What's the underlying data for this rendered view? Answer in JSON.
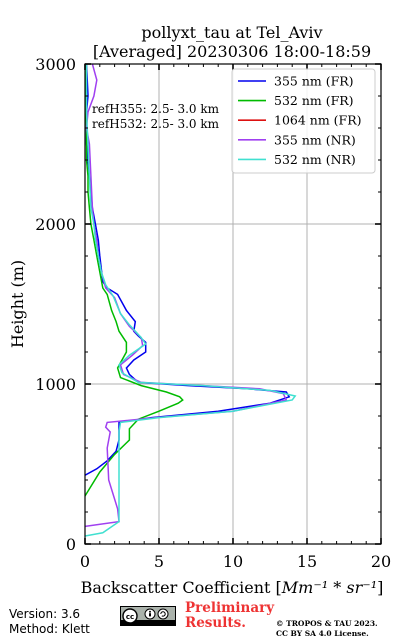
{
  "chart_data": {
    "type": "line",
    "title": "pollyxt_tau at Tel_Aviv",
    "subtitle": "[Averaged] 20230306 18:00-18:59",
    "xlabel_text": "Backscatter Coefficient [",
    "xlabel_units": "Mm⁻¹ * sr⁻¹",
    "xlabel_close": "]",
    "ylabel": "Height (m)",
    "xlim": [
      0,
      20
    ],
    "ylim": [
      0,
      3000
    ],
    "x_ticks": [
      0,
      5,
      10,
      15,
      20
    ],
    "y_ticks": [
      0,
      1000,
      2000,
      3000
    ],
    "grid": true,
    "legend_position": "top-right",
    "annotations": [
      "refH355:  2.5- 3.0 km",
      "refH532:  2.5- 3.0 km"
    ],
    "series": [
      {
        "name": "355 nm (FR)",
        "color": "#0000ee",
        "points": [
          [
            -0.5,
            400
          ],
          [
            0,
            430
          ],
          [
            0.8,
            470
          ],
          [
            1.5,
            520
          ],
          [
            2.1,
            580
          ],
          [
            2.3,
            650
          ],
          [
            2.3,
            760
          ],
          [
            4.5,
            790
          ],
          [
            9,
            830
          ],
          [
            12.5,
            880
          ],
          [
            13.8,
            920
          ],
          [
            13.6,
            950
          ],
          [
            11,
            970
          ],
          [
            7,
            990
          ],
          [
            3.6,
            1010
          ],
          [
            3.0,
            1060
          ],
          [
            2.8,
            1100
          ],
          [
            3.3,
            1150
          ],
          [
            4.1,
            1200
          ],
          [
            4.1,
            1260
          ],
          [
            3.6,
            1300
          ],
          [
            3.3,
            1330
          ],
          [
            3.4,
            1390
          ],
          [
            2.8,
            1460
          ],
          [
            2.2,
            1560
          ],
          [
            1.5,
            1600
          ],
          [
            1.2,
            1640
          ],
          [
            1.0,
            1800
          ],
          [
            0.9,
            1900
          ],
          [
            0.7,
            2000
          ],
          [
            0.5,
            2100
          ],
          [
            0.4,
            2200
          ],
          [
            0.3,
            2300
          ],
          [
            0.2,
            2400
          ],
          [
            0.1,
            2500
          ],
          [
            0.1,
            2700
          ],
          [
            0.2,
            2800
          ],
          [
            0.1,
            3000
          ]
        ]
      },
      {
        "name": "532 nm (FR)",
        "color": "#00bb00",
        "points": [
          [
            -0.5,
            180
          ],
          [
            0,
            300
          ],
          [
            1,
            450
          ],
          [
            2.0,
            560
          ],
          [
            3.0,
            650
          ],
          [
            3.0,
            720
          ],
          [
            3.6,
            780
          ],
          [
            5.0,
            830
          ],
          [
            6.3,
            880
          ],
          [
            6.6,
            900
          ],
          [
            6.4,
            920
          ],
          [
            5.5,
            950
          ],
          [
            3.8,
            990
          ],
          [
            2.4,
            1040
          ],
          [
            2.2,
            1100
          ],
          [
            2.8,
            1200
          ],
          [
            2.8,
            1260
          ],
          [
            2.3,
            1330
          ],
          [
            2.1,
            1390
          ],
          [
            1.8,
            1460
          ],
          [
            1.5,
            1560
          ],
          [
            1.2,
            1600
          ],
          [
            1.0,
            1700
          ],
          [
            0.8,
            1800
          ],
          [
            0.6,
            1900
          ],
          [
            0.4,
            2000
          ],
          [
            0.3,
            2100
          ],
          [
            0.2,
            2200
          ],
          [
            0.2,
            2300
          ],
          [
            0.1,
            2400
          ],
          [
            0.1,
            2500
          ],
          [
            0.1,
            2600
          ],
          [
            0.05,
            2800
          ],
          [
            0,
            3000
          ]
        ]
      },
      {
        "name": "1064 nm (FR)",
        "color": "#dd1111",
        "points": []
      },
      {
        "name": "355 nm (NR)",
        "color": "#a040f0",
        "points": [
          [
            0,
            110
          ],
          [
            2.3,
            140
          ],
          [
            2.2,
            220
          ],
          [
            1.6,
            400
          ],
          [
            1.5,
            600
          ],
          [
            1.7,
            700
          ],
          [
            1.4,
            730
          ],
          [
            1.5,
            760
          ],
          [
            4.8,
            790
          ],
          [
            10,
            830
          ],
          [
            13.6,
            900
          ],
          [
            13.4,
            940
          ],
          [
            11.8,
            970
          ],
          [
            8,
            990
          ],
          [
            3.8,
            1010
          ],
          [
            2.6,
            1060
          ],
          [
            2.4,
            1120
          ],
          [
            3.2,
            1180
          ],
          [
            3.9,
            1240
          ],
          [
            3.8,
            1290
          ],
          [
            3.0,
            1360
          ],
          [
            2.4,
            1440
          ],
          [
            2.0,
            1540
          ],
          [
            1.4,
            1600
          ],
          [
            1.1,
            1700
          ],
          [
            0.9,
            1800
          ],
          [
            0.8,
            1900
          ],
          [
            0.6,
            2000
          ],
          [
            0.5,
            2100
          ],
          [
            0.4,
            2300
          ],
          [
            0.3,
            2500
          ],
          [
            0.1,
            2600
          ],
          [
            0.2,
            2700
          ],
          [
            0.6,
            2800
          ],
          [
            0.8,
            2900
          ],
          [
            0.5,
            3000
          ]
        ]
      },
      {
        "name": "532 nm (NR)",
        "color": "#40e0d0",
        "points": [
          [
            -0.3,
            30
          ],
          [
            0,
            50
          ],
          [
            1.2,
            70
          ],
          [
            2.3,
            140
          ],
          [
            2.3,
            250
          ],
          [
            2.3,
            400
          ],
          [
            2.3,
            700
          ],
          [
            2.4,
            760
          ],
          [
            5,
            790
          ],
          [
            10,
            830
          ],
          [
            14,
            900
          ],
          [
            14.2,
            925
          ],
          [
            12.5,
            960
          ],
          [
            8,
            990
          ],
          [
            3.6,
            1010
          ],
          [
            2.5,
            1070
          ],
          [
            2.3,
            1120
          ],
          [
            3.0,
            1180
          ],
          [
            4.1,
            1250
          ],
          [
            3.8,
            1290
          ],
          [
            3.0,
            1370
          ],
          [
            2.4,
            1440
          ],
          [
            1.9,
            1550
          ],
          [
            1.4,
            1620
          ],
          [
            1.1,
            1700
          ],
          [
            0.9,
            1800
          ],
          [
            0.7,
            1900
          ],
          [
            0.6,
            2000
          ],
          [
            0.4,
            2100
          ],
          [
            0.3,
            2300
          ],
          [
            0.2,
            2500
          ],
          [
            0.1,
            2700
          ],
          [
            0.1,
            3000
          ]
        ]
      }
    ]
  },
  "footer": {
    "version": "Version: 3.6",
    "method": "Method: Klett",
    "license_badge": "cc-by-sa-icon",
    "preliminary_line1": "Preliminary",
    "preliminary_line2": "Results.",
    "copyright_line1": "© TROPOS & TAU 2023.",
    "copyright_line2": "CC BY SA 4.0 License."
  }
}
